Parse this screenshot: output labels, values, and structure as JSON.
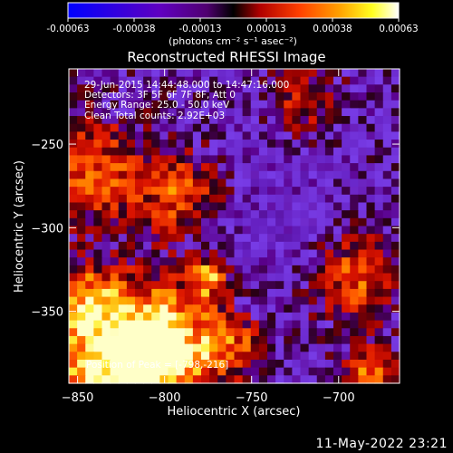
{
  "chart_data": {
    "type": "heatmap",
    "title": "Reconstructed RHESSI Image",
    "xlabel": "Heliocentric X (arcsec)",
    "ylabel": "Heliocentric Y (arcsec)",
    "xlim": [
      -855,
      -665
    ],
    "ylim": [
      -393,
      -205
    ],
    "x_ticks": [
      -850,
      -800,
      -750,
      -700
    ],
    "x_tick_labels": [
      "−850",
      "−800",
      "−750",
      "−700"
    ],
    "y_ticks": [
      -250,
      -300,
      -350
    ],
    "y_tick_labels": [
      "−250",
      "−300",
      "−350"
    ],
    "colorbar": {
      "range": [
        -0.00063,
        0.00063
      ],
      "ticks": [
        "-0.00063",
        "-0.00038",
        "-0.00013",
        "0.00013",
        "0.00038",
        "0.00063"
      ],
      "unit_label": "(photons cm⁻² s⁻¹ asec⁻²)",
      "colormap": [
        "#0000ff",
        "#5a00c8",
        "#8a00a0",
        "#000000",
        "#c00000",
        "#ff5000",
        "#ffa000",
        "#ffff00",
        "#ffffff"
      ]
    },
    "annotations": [
      "29-Jun-2015 14:44:48.000 to 14:47:16.000",
      "Detectors: 3F 5F 6F 7F 8F, Att 0",
      "Energy Range: 25.0 - 50.0 keV",
      "Clean     Total counts: 2.92E+03"
    ],
    "peak_label": "Position of Peak = [-798,-216]",
    "peak_position": [
      -798,
      -216
    ]
  },
  "footer_timestamp": "11-May-2022 23:21"
}
